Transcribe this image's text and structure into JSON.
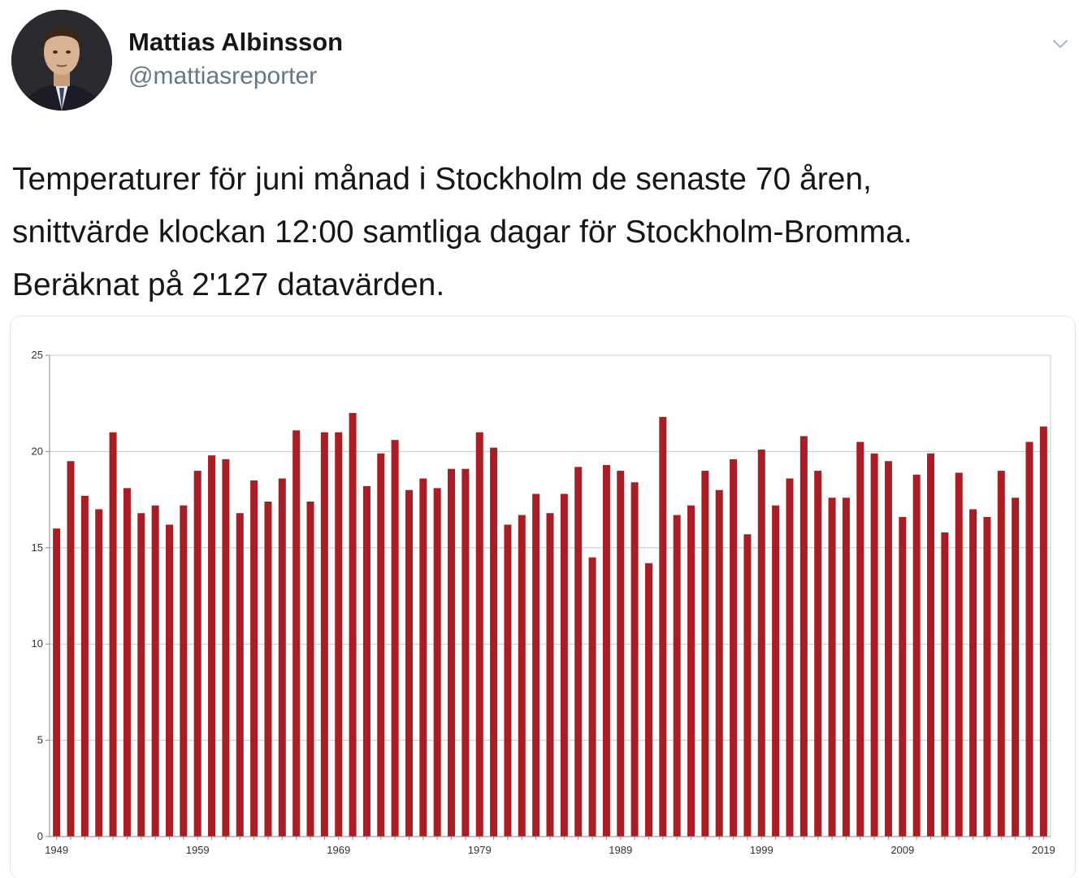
{
  "tweet": {
    "author": {
      "display_name": "Mattias Albinsson",
      "handle": "@mattiasreporter",
      "avatar_icon": "profile-photo"
    },
    "menu_icon": "chevron-down-icon",
    "text_lines": [
      "Temperaturer för juni månad i Stockholm de senaste 70 åren,",
      "snittvärde klockan 12:00 samtliga dagar för Stockholm-Bromma.",
      "Beräknat på 2'127 datavärden."
    ]
  },
  "colors": {
    "bar": "#a91e24",
    "grid": "#c8c8c8",
    "axis": "#888888",
    "handle": "#657786"
  },
  "chart_data": {
    "type": "bar",
    "title": "",
    "xlabel": "",
    "ylabel": "",
    "ylim": [
      0,
      25
    ],
    "yticks": [
      0,
      5,
      10,
      15,
      20,
      25
    ],
    "xtick_labels": [
      "1949",
      "1959",
      "1969",
      "1979",
      "1989",
      "1999",
      "2009",
      "2019"
    ],
    "grid": true,
    "categories": [
      1949,
      1950,
      1951,
      1952,
      1953,
      1954,
      1955,
      1956,
      1957,
      1958,
      1959,
      1960,
      1961,
      1962,
      1963,
      1964,
      1965,
      1966,
      1967,
      1968,
      1969,
      1970,
      1971,
      1972,
      1973,
      1974,
      1975,
      1976,
      1977,
      1978,
      1979,
      1980,
      1981,
      1982,
      1983,
      1984,
      1985,
      1986,
      1987,
      1988,
      1989,
      1990,
      1991,
      1992,
      1993,
      1994,
      1995,
      1996,
      1997,
      1998,
      1999,
      2000,
      2001,
      2002,
      2003,
      2004,
      2005,
      2006,
      2007,
      2008,
      2009,
      2010,
      2011,
      2012,
      2013,
      2014,
      2015,
      2016,
      2017,
      2018,
      2019
    ],
    "values": [
      16.0,
      19.5,
      17.7,
      17.0,
      21.0,
      18.1,
      16.8,
      17.2,
      16.2,
      17.2,
      19.0,
      19.8,
      19.6,
      16.8,
      18.5,
      17.4,
      18.6,
      21.1,
      17.4,
      21.0,
      21.0,
      22.0,
      18.2,
      19.9,
      20.6,
      18.0,
      18.6,
      18.1,
      19.1,
      19.1,
      21.0,
      20.2,
      16.2,
      16.7,
      17.8,
      16.8,
      17.8,
      19.2,
      14.5,
      19.3,
      19.0,
      18.4,
      14.2,
      21.8,
      16.7,
      17.2,
      19.0,
      18.0,
      19.6,
      15.7,
      20.1,
      17.2,
      18.6,
      20.8,
      19.0,
      17.6,
      17.6,
      20.5,
      19.9,
      19.5,
      16.6,
      18.8,
      19.9,
      15.8,
      18.9,
      17.0,
      16.6,
      19.0,
      17.6,
      20.5,
      21.3
    ]
  }
}
